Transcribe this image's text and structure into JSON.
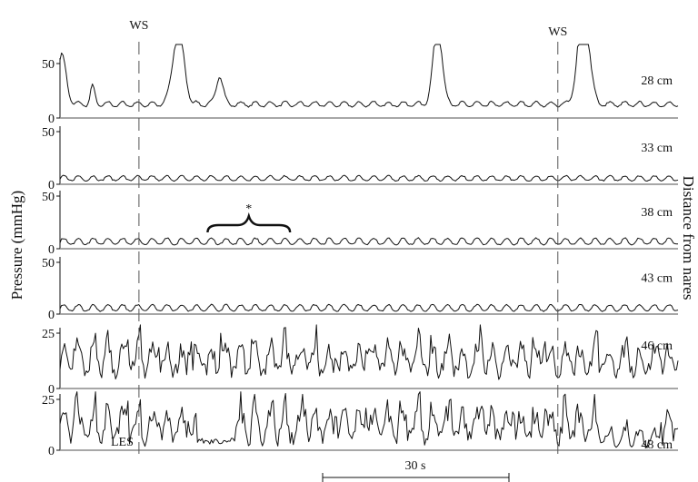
{
  "chart_data": {
    "type": "line",
    "ylabel": "Pressure (mmHg)",
    "y2label": "Distance from nares",
    "time_span_seconds": 180,
    "scale_bar": {
      "label": "30 s",
      "seconds": 30
    },
    "markers": [
      {
        "label": "WS",
        "time_s": 23
      },
      {
        "label": "WS",
        "time_s": 145
      }
    ],
    "annotations": [
      {
        "label": "*",
        "panel": "38 cm",
        "start_s": 43,
        "end_s": 67
      },
      {
        "label": "LES",
        "panel": "48 cm",
        "time_s": 23
      }
    ],
    "panels": [
      {
        "name": "28 cm",
        "ylim": [
          0,
          50
        ],
        "yticks": [
          0,
          50
        ],
        "baseline": 12,
        "wave_amp": 3,
        "events": [
          {
            "t": 0.5,
            "amp": 45,
            "w": 2
          },
          {
            "t": 9.5,
            "amp": 16,
            "w": 1
          },
          {
            "t": 34.5,
            "amp": 68,
            "w": 2.5
          },
          {
            "t": 46.5,
            "amp": 27,
            "w": 1.5
          },
          {
            "t": 110,
            "amp": 73,
            "w": 2
          },
          {
            "t": 152.5,
            "amp": 93,
            "w": 2.5
          }
        ]
      },
      {
        "name": "33 cm",
        "ylim": [
          0,
          50
        ],
        "yticks": [
          0,
          50
        ],
        "baseline": 5,
        "wave_amp": 3,
        "events": []
      },
      {
        "name": "38 cm",
        "ylim": [
          0,
          50
        ],
        "yticks": [
          0,
          50
        ],
        "baseline": 6,
        "wave_amp": 4,
        "events": []
      },
      {
        "name": "43 cm",
        "ylim": [
          0,
          50
        ],
        "yticks": [
          0,
          50
        ],
        "baseline": 5,
        "wave_amp": 4,
        "events": []
      },
      {
        "name": "46 cm",
        "ylim": [
          0,
          25
        ],
        "yticks": [
          0,
          25
        ],
        "baseline": 11,
        "wave_amp": 7,
        "events": []
      },
      {
        "name": "48 cm",
        "ylim": [
          0,
          25
        ],
        "yticks": [
          0,
          25
        ],
        "baseline": 10,
        "wave_amp": 8,
        "events": []
      }
    ]
  }
}
